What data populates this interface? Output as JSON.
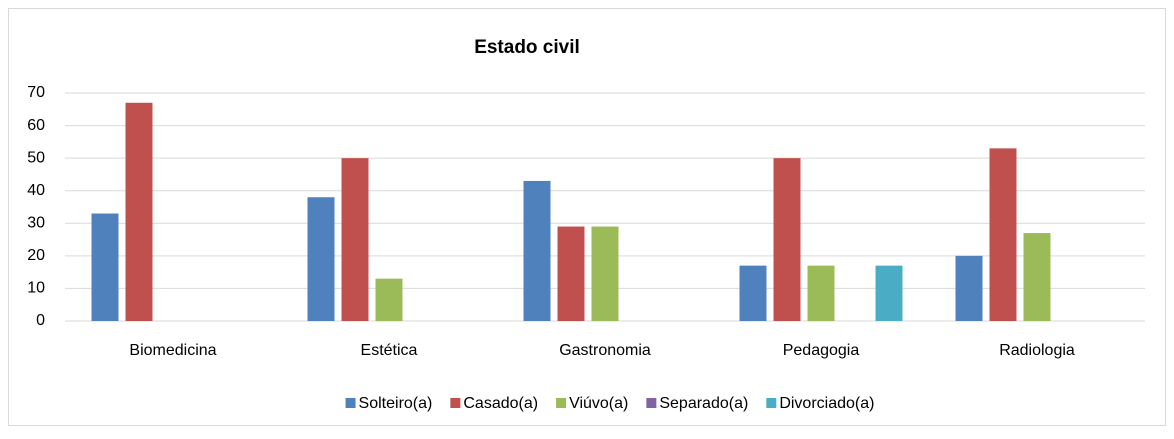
{
  "chart_data": {
    "type": "bar",
    "title": "Estado civil",
    "categories": [
      "Biomedicina",
      "Estética",
      "Gastronomia",
      "Pedagogia",
      "Radiologia"
    ],
    "series": [
      {
        "name": "Solteiro(a)",
        "color": "#4f81bd",
        "values": [
          33,
          38,
          43,
          17,
          20
        ]
      },
      {
        "name": "Casado(a)",
        "color": "#c0504d",
        "values": [
          67,
          50,
          29,
          50,
          53
        ]
      },
      {
        "name": "Viúvo(a)",
        "color": "#9bbb59",
        "values": [
          0,
          13,
          29,
          17,
          27
        ]
      },
      {
        "name": "Separado(a)",
        "color": "#8064a2",
        "values": [
          0,
          0,
          0,
          0,
          0
        ]
      },
      {
        "name": "Divorciado(a)",
        "color": "#4bacc6",
        "values": [
          0,
          0,
          0,
          17,
          0
        ]
      }
    ],
    "ylim": [
      0,
      70
    ],
    "yticks": [
      0,
      10,
      20,
      30,
      40,
      50,
      60,
      70
    ],
    "grid": true,
    "legend": "bottom"
  }
}
